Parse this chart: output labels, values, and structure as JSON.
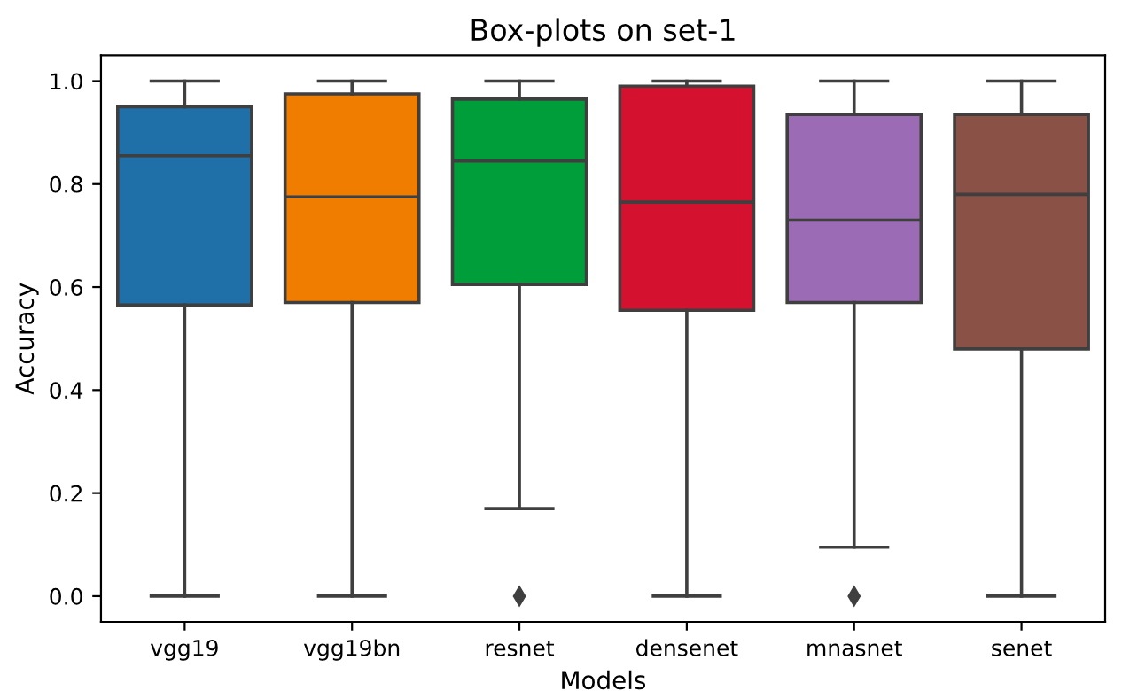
{
  "chart_data": {
    "type": "box",
    "title": "Box-plots on set-1",
    "xlabel": "Models",
    "ylabel": "Accuracy",
    "categories": [
      "vgg19",
      "vgg19bn",
      "resnet",
      "densenet",
      "mnasnet",
      "senet"
    ],
    "colors": [
      "#1f6fa8",
      "#f07d00",
      "#009e3a",
      "#d4122f",
      "#9b6bb5",
      "#8a5147"
    ],
    "boxes": [
      {
        "low": 0,
        "q1": 0.565,
        "median": 0.855,
        "q3": 0.95,
        "high": 1.0
      },
      {
        "low": 0,
        "q1": 0.57,
        "median": 0.775,
        "q3": 0.975,
        "high": 1.0
      },
      {
        "low": 0.17,
        "q1": 0.605,
        "median": 0.845,
        "q3": 0.965,
        "high": 1.0,
        "outliers": [
          0
        ]
      },
      {
        "low": 0,
        "q1": 0.555,
        "median": 0.765,
        "q3": 0.99,
        "high": 1.0
      },
      {
        "low": 0.095,
        "q1": 0.57,
        "median": 0.73,
        "q3": 0.935,
        "high": 1.0,
        "outliers": [
          0
        ]
      },
      {
        "low": 0,
        "q1": 0.48,
        "median": 0.78,
        "q3": 0.935,
        "high": 1.0
      }
    ],
    "ylim": [
      -0.05,
      1.05
    ],
    "yticks": [
      {
        "value": 0,
        "label": "0.0"
      },
      {
        "value": 0.2,
        "label": "0.2"
      },
      {
        "value": 0.4,
        "label": "0.4"
      },
      {
        "value": 0.6,
        "label": "0.6"
      },
      {
        "value": 0.8,
        "label": "0.8"
      },
      {
        "value": 1,
        "label": "1.0"
      }
    ],
    "grid": false
  }
}
